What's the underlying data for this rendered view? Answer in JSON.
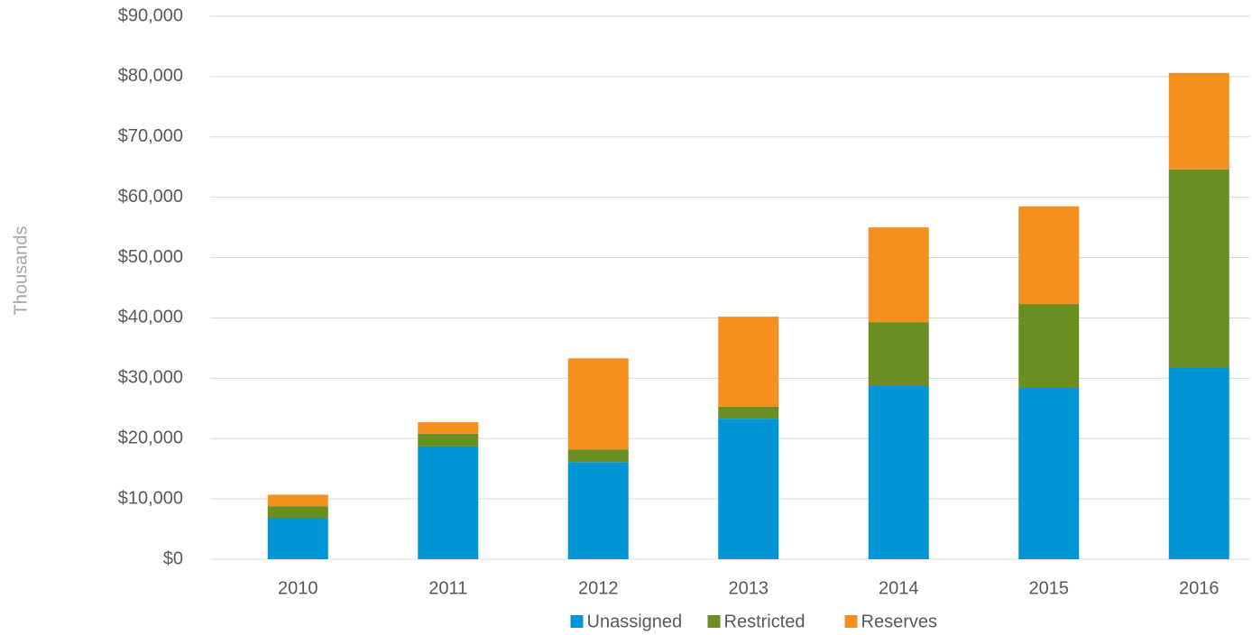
{
  "chart_data": {
    "type": "stacked_bar",
    "y_label": "Thousands",
    "categories": [
      "2010",
      "2011",
      "2012",
      "2013",
      "2014",
      "2015",
      "2016"
    ],
    "series": [
      {
        "name": "Unassigned",
        "color": "#0096d6",
        "values": [
          6800,
          18700,
          16100,
          23300,
          28700,
          28400,
          31700
        ]
      },
      {
        "name": "Restricted",
        "color": "#6b8e23",
        "values": [
          2000,
          2100,
          2100,
          2000,
          10600,
          13900,
          32900
        ]
      },
      {
        "name": "Reserves",
        "color": "#f39020",
        "values": [
          1900,
          1900,
          15100,
          14900,
          15700,
          16200,
          16000
        ]
      }
    ],
    "ylim": [
      0,
      90000
    ],
    "yticks": [
      {
        "value": 0,
        "label": "$0"
      },
      {
        "value": 10000,
        "label": "$10,000"
      },
      {
        "value": 20000,
        "label": "$20,000"
      },
      {
        "value": 30000,
        "label": "$30,000"
      },
      {
        "value": 40000,
        "label": "$40,000"
      },
      {
        "value": 50000,
        "label": "$50,000"
      },
      {
        "value": 60000,
        "label": "$60,000"
      },
      {
        "value": 70000,
        "label": "$70,000"
      },
      {
        "value": 80000,
        "label": "$80,000"
      },
      {
        "value": 90000,
        "label": "$90,000"
      }
    ],
    "grid": true,
    "legend": "bottom"
  }
}
